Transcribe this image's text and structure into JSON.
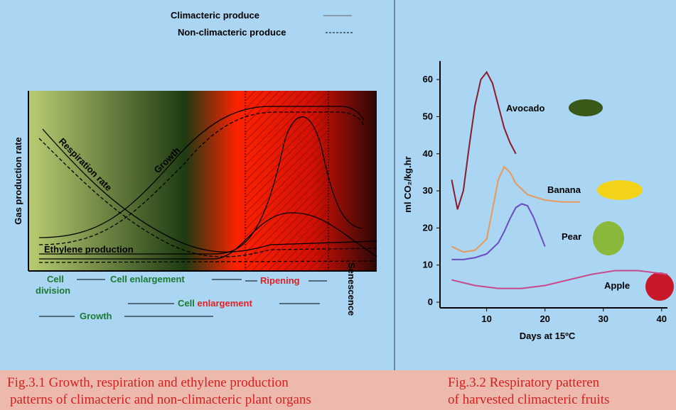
{
  "diagram": {
    "legend": [
      "Climacteric produce",
      "Non-climacteric produce"
    ],
    "y_label": "Gas production rate",
    "curve_labels": [
      "Respiration rate",
      "Growth",
      "Ethylene production"
    ],
    "phases": {
      "top": [
        "Cell",
        "division",
        "Cell enlargement",
        "Ripening",
        "Senescence"
      ],
      "bottom": [
        "Cell",
        "enlargement",
        "Growth"
      ]
    }
  },
  "chart_data": {
    "type": "line",
    "y_label": "ml CO₂/kg.hr",
    "x_label": "Days at 15ºC",
    "xlim": [
      2,
      41
    ],
    "xticks": [
      10,
      20,
      30,
      40
    ],
    "ylim": [
      0,
      65
    ],
    "yticks": [
      0,
      10,
      20,
      30,
      40,
      50,
      60
    ],
    "series": [
      {
        "name": "Avocado",
        "color": "#8b1a2a",
        "x": [
          4,
          5,
          6,
          7,
          8,
          9,
          10,
          11,
          12,
          13,
          14,
          15
        ],
        "values": [
          33,
          25,
          30,
          42,
          53,
          60,
          62,
          59,
          53,
          47,
          43,
          40
        ]
      },
      {
        "name": "Banana",
        "color": "#e8995a",
        "x": [
          4,
          6,
          8,
          10,
          11,
          12,
          13,
          14,
          15,
          17,
          20,
          23,
          26
        ],
        "values": [
          15,
          13.5,
          14,
          17,
          25,
          33,
          36.5,
          35,
          32,
          29,
          27.5,
          27,
          27
        ]
      },
      {
        "name": "Pear",
        "color": "#6a4bc4",
        "x": [
          4,
          6,
          8,
          10,
          12,
          13,
          14,
          15,
          16,
          17,
          18,
          19,
          20
        ],
        "values": [
          11.5,
          11.5,
          12,
          13,
          16,
          19,
          22.5,
          25.5,
          26.5,
          26,
          23,
          19,
          15
        ]
      },
      {
        "name": "Apple",
        "color": "#c84a8a",
        "x": [
          4,
          8,
          12,
          16,
          20,
          24,
          28,
          32,
          36,
          41
        ],
        "values": [
          6,
          4.5,
          3.7,
          3.7,
          4.5,
          6,
          7.5,
          8.5,
          8.5,
          7.5
        ]
      }
    ]
  },
  "captions": [
    "Fig.3.1 Growth, respiration and ethylene production",
    "patterns of climacteric and non-climacteric plant organs",
    "Fig.3.2  Respiratory patteren",
    "of harvested climacteric fruits"
  ]
}
